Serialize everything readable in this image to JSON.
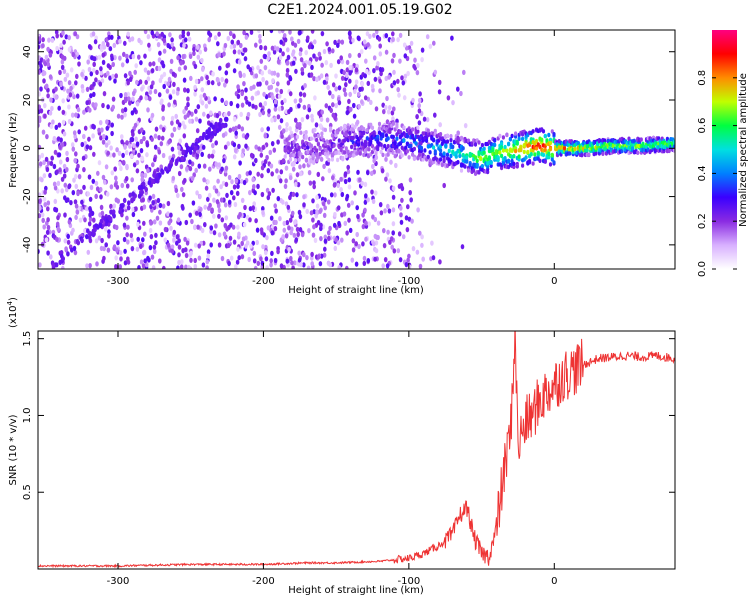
{
  "title": "C2E1.2024.001.05.19.G02",
  "chart_data": [
    {
      "type": "heatmap",
      "xlabel": "Height of straight line (km)",
      "ylabel": "Frequency (Hz)",
      "xlim": [
        -355,
        83
      ],
      "ylim": [
        -50,
        49
      ],
      "xticks": [
        -300,
        -200,
        -100,
        0
      ],
      "yticks": [
        -40,
        -20,
        0,
        20,
        40
      ],
      "colorbar": {
        "label": "Normalized spectral amplitude",
        "range": [
          0.0,
          1.0
        ],
        "ticks": [
          "0.0",
          "0.2",
          "0.4",
          "0.6",
          "0.8"
        ],
        "colors": [
          "#ffffff",
          "#d8b0ff",
          "#8a2be2",
          "#3a00ff",
          "#0080ff",
          "#00e0e0",
          "#00ff40",
          "#c0ff00",
          "#ff8c00",
          "#ff0000",
          "#ff0080"
        ]
      },
      "ridge": {
        "x": [
          -180,
          -160,
          -140,
          -120,
          -100,
          -80,
          -60,
          -50,
          -40,
          -30,
          -20,
          -10,
          0,
          20,
          40,
          60,
          83
        ],
        "y": [
          0,
          1,
          3,
          4,
          3,
          0,
          -3,
          -4,
          -2,
          -1,
          0,
          1,
          0,
          0,
          1,
          1,
          2
        ],
        "amplitude": [
          0.25,
          0.2,
          0.3,
          0.35,
          0.4,
          0.45,
          0.55,
          0.7,
          0.65,
          0.75,
          0.85,
          0.9,
          0.85,
          0.75,
          0.7,
          0.65,
          0.65
        ]
      }
    },
    {
      "type": "line",
      "xlabel": "Height of straight line (km)",
      "ylabel": "SNR (10 * v/v)",
      "y_multiplier": "(x10",
      "y_multiplier_exp": "4",
      "y_multiplier_close": ")",
      "xlim": [
        -355,
        83
      ],
      "ylim": [
        0,
        1.55
      ],
      "xticks": [
        -300,
        -200,
        -100,
        0
      ],
      "yticks": [
        0.5,
        1.0,
        1.5
      ],
      "ytick_labels": [
        "0.5",
        "1.0",
        "1.5"
      ],
      "color": "#ee3333",
      "series": [
        {
          "x": [
            -355,
            -300,
            -250,
            -200,
            -170,
            -150,
            -120,
            -100,
            -90,
            -80,
            -70,
            -65,
            -60,
            -55,
            -50,
            -45,
            -40,
            -35,
            -30,
            -27,
            -25,
            -20,
            -15,
            -10,
            -5,
            0,
            5,
            10,
            20,
            30,
            40,
            50,
            60,
            70,
            83
          ],
          "y": [
            0.02,
            0.02,
            0.03,
            0.03,
            0.04,
            0.04,
            0.05,
            0.07,
            0.1,
            0.15,
            0.22,
            0.35,
            0.4,
            0.2,
            0.1,
            0.08,
            0.25,
            0.6,
            0.9,
            1.55,
            0.8,
            0.95,
            1.0,
            1.1,
            1.15,
            1.2,
            1.25,
            1.28,
            1.33,
            1.37,
            1.38,
            1.39,
            1.38,
            1.39,
            1.37
          ]
        }
      ]
    }
  ]
}
